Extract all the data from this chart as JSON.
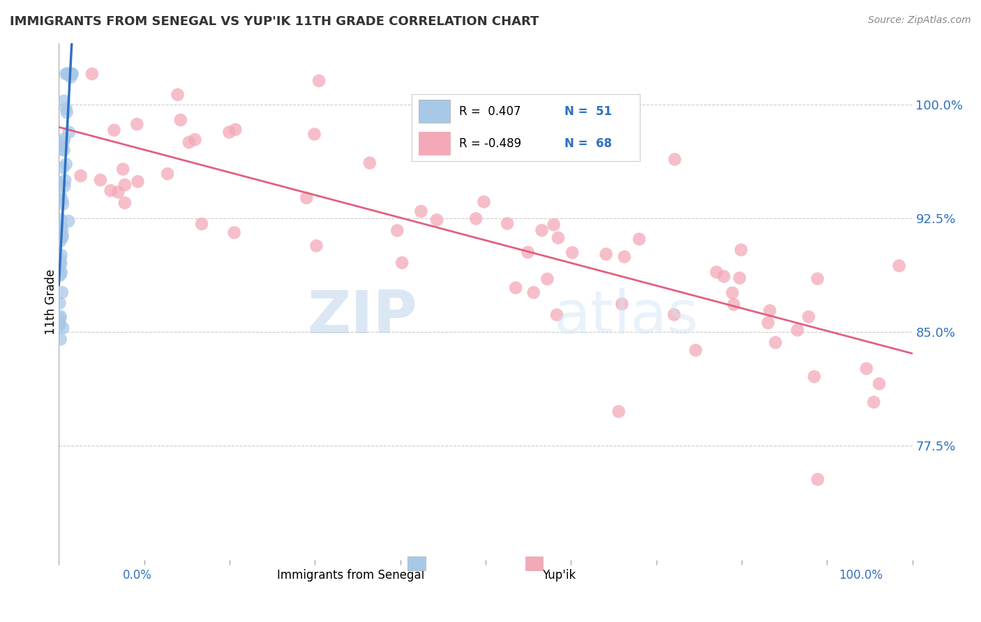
{
  "title": "IMMIGRANTS FROM SENEGAL VS YUP'IK 11TH GRADE CORRELATION CHART",
  "source_text": "Source: ZipAtlas.com",
  "ylabel": "11th Grade",
  "yaxis_labels": [
    "77.5%",
    "85.0%",
    "92.5%",
    "100.0%"
  ],
  "yaxis_values": [
    0.775,
    0.85,
    0.925,
    1.0
  ],
  "xlim": [
    0.0,
    1.0
  ],
  "ylim": [
    0.7,
    1.04
  ],
  "blue_color": "#a8c8e8",
  "pink_color": "#f4a8b8",
  "blue_line_color": "#3070c0",
  "pink_line_color": "#e06080",
  "legend_blue_r": "R =  0.407",
  "legend_blue_n": "N =  51",
  "legend_pink_r": "R = -0.489",
  "legend_pink_n": "N =  68",
  "watermark_zip": "ZIP",
  "watermark_atlas": "atlas",
  "background_color": "#ffffff",
  "grid_color": "#cccccc",
  "title_color": "#333333",
  "right_label_color": "#3070c0",
  "bottom_label_color": "#3070c0"
}
